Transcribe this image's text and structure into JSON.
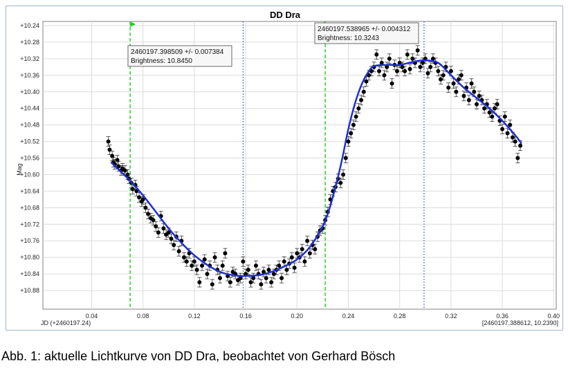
{
  "caption": "Abb. 1: aktuelle Lichtkurve von DD Dra, beobachtet von Gerhard Bösch",
  "colors": {
    "points": "#000000",
    "fit_curve": "#1f2fd0",
    "marker_lines": "#2ecc2e",
    "cursor_lines": "#3a4fd6",
    "grid": "#dcdcdc"
  },
  "chart_data": {
    "type": "scatter",
    "title": "DD Dra",
    "ylabel": "Mag",
    "xlabel": "JD (+2460197.24)",
    "corner_readout": "[2460197.388612, 10.2390]",
    "xlim": [
      0.002,
      0.402
    ],
    "ylim": [
      10.23,
      10.925
    ],
    "y_inverted": true,
    "x_ticks": [
      0.04,
      0.08,
      0.12,
      0.16,
      0.2,
      0.24,
      0.28,
      0.32,
      0.36,
      0.4
    ],
    "x_tick_labels": [
      "0.04",
      "0.08",
      "0.12",
      "0.16",
      "0.20",
      "0.24",
      "0.28",
      "0.32",
      "0.36",
      "0.40"
    ],
    "y_ticks": [
      10.24,
      10.28,
      10.32,
      10.36,
      10.4,
      10.44,
      10.48,
      10.52,
      10.56,
      10.6,
      10.64,
      10.68,
      10.72,
      10.76,
      10.8,
      10.84,
      10.88
    ],
    "y_tick_labels": [
      "+10.24",
      "+10.28",
      "+10.32",
      "+10.36",
      "+10.40",
      "+10.44",
      "+10.48",
      "+10.52",
      "+10.56",
      "+10.60",
      "+10.64",
      "+10.68",
      "+10.72",
      "+10.76",
      "+10.80",
      "+10.84",
      "+10.88"
    ],
    "grid": true,
    "legend": "none",
    "marker_lines_x": [
      0.07,
      0.222
    ],
    "cursor_lines_x": [
      0.158,
      0.299
    ],
    "tooltips": [
      {
        "line1": "2460197.398509 +/- 0.007384",
        "line2": "Brightness: 10.8450",
        "x": 0.158,
        "y": 10.845
      },
      {
        "line1": "2460197.538965 +/- 0.004312",
        "line2": "Brightness: 10.3243",
        "x": 0.299,
        "y": 10.3243
      }
    ],
    "fit_curve": {
      "name": "",
      "x": [
        0.055,
        0.07,
        0.08,
        0.09,
        0.1,
        0.11,
        0.12,
        0.13,
        0.14,
        0.15,
        0.158,
        0.17,
        0.18,
        0.19,
        0.2,
        0.21,
        0.22,
        0.225,
        0.23,
        0.235,
        0.24,
        0.245,
        0.25,
        0.255,
        0.26,
        0.27,
        0.28,
        0.29,
        0.299,
        0.31,
        0.32,
        0.33,
        0.34,
        0.35,
        0.36,
        0.37,
        0.375
      ],
      "y": [
        10.57,
        10.615,
        10.65,
        10.69,
        10.73,
        10.765,
        10.795,
        10.818,
        10.835,
        10.843,
        10.845,
        10.843,
        10.835,
        10.822,
        10.805,
        10.775,
        10.725,
        10.685,
        10.63,
        10.565,
        10.49,
        10.43,
        10.385,
        10.355,
        10.338,
        10.335,
        10.335,
        10.328,
        10.324,
        10.33,
        10.36,
        10.39,
        10.415,
        10.44,
        10.47,
        10.505,
        10.525
      ]
    },
    "series": [
      {
        "name": "",
        "x": [
          0.053,
          0.054,
          0.056,
          0.057,
          0.058,
          0.06,
          0.061,
          0.063,
          0.064,
          0.066,
          0.068,
          0.069,
          0.071,
          0.072,
          0.074,
          0.075,
          0.077,
          0.079,
          0.08,
          0.082,
          0.084,
          0.086,
          0.088,
          0.09,
          0.092,
          0.094,
          0.096,
          0.098,
          0.1,
          0.102,
          0.104,
          0.106,
          0.108,
          0.11,
          0.112,
          0.114,
          0.116,
          0.118,
          0.12,
          0.122,
          0.124,
          0.126,
          0.128,
          0.13,
          0.132,
          0.134,
          0.136,
          0.138,
          0.14,
          0.142,
          0.144,
          0.146,
          0.148,
          0.15,
          0.152,
          0.154,
          0.156,
          0.158,
          0.16,
          0.162,
          0.164,
          0.166,
          0.168,
          0.17,
          0.172,
          0.174,
          0.176,
          0.178,
          0.18,
          0.182,
          0.184,
          0.186,
          0.188,
          0.19,
          0.192,
          0.194,
          0.196,
          0.198,
          0.2,
          0.202,
          0.204,
          0.206,
          0.208,
          0.21,
          0.212,
          0.214,
          0.216,
          0.218,
          0.22,
          0.222,
          0.224,
          0.226,
          0.228,
          0.23,
          0.232,
          0.234,
          0.236,
          0.238,
          0.24,
          0.242,
          0.244,
          0.246,
          0.248,
          0.25,
          0.252,
          0.254,
          0.256,
          0.258,
          0.26,
          0.262,
          0.264,
          0.266,
          0.268,
          0.27,
          0.272,
          0.274,
          0.276,
          0.278,
          0.28,
          0.282,
          0.284,
          0.286,
          0.288,
          0.29,
          0.292,
          0.294,
          0.296,
          0.298,
          0.3,
          0.302,
          0.304,
          0.306,
          0.308,
          0.31,
          0.312,
          0.314,
          0.316,
          0.318,
          0.32,
          0.322,
          0.324,
          0.326,
          0.328,
          0.33,
          0.332,
          0.334,
          0.336,
          0.338,
          0.34,
          0.342,
          0.344,
          0.346,
          0.348,
          0.35,
          0.352,
          0.354,
          0.356,
          0.358,
          0.36,
          0.362,
          0.364,
          0.366,
          0.368,
          0.37,
          0.372,
          0.374
        ],
        "y": [
          10.52,
          10.54,
          10.555,
          10.57,
          10.575,
          10.565,
          10.58,
          10.59,
          10.585,
          10.59,
          10.6,
          10.61,
          10.62,
          10.635,
          10.625,
          10.64,
          10.655,
          10.665,
          10.66,
          10.68,
          10.695,
          10.705,
          10.71,
          10.725,
          10.74,
          10.7,
          10.73,
          10.745,
          10.74,
          10.755,
          10.77,
          10.75,
          10.785,
          10.76,
          10.8,
          10.81,
          10.79,
          10.82,
          10.81,
          10.83,
          10.86,
          10.82,
          10.805,
          10.84,
          10.82,
          10.865,
          10.8,
          10.83,
          10.85,
          10.82,
          10.79,
          10.845,
          10.86,
          10.835,
          10.84,
          10.855,
          10.85,
          10.81,
          10.84,
          10.83,
          10.86,
          10.85,
          10.82,
          10.84,
          10.865,
          10.835,
          10.85,
          10.83,
          10.86,
          10.84,
          10.83,
          10.82,
          10.85,
          10.81,
          10.83,
          10.815,
          10.8,
          10.825,
          10.79,
          10.8,
          10.78,
          10.81,
          10.76,
          10.79,
          10.77,
          10.78,
          10.75,
          10.735,
          10.73,
          10.71,
          10.69,
          10.66,
          10.64,
          10.63,
          10.61,
          10.62,
          10.6,
          10.56,
          10.52,
          10.5,
          10.48,
          10.46,
          10.44,
          10.42,
          10.4,
          10.375,
          10.36,
          10.35,
          10.34,
          10.31,
          10.35,
          10.33,
          10.36,
          10.34,
          10.32,
          10.38,
          10.335,
          10.35,
          10.33,
          10.34,
          10.35,
          10.31,
          10.345,
          10.32,
          10.33,
          10.3,
          10.34,
          10.33,
          10.32,
          10.355,
          10.34,
          10.32,
          10.33,
          10.35,
          10.37,
          10.36,
          10.34,
          10.39,
          10.35,
          10.38,
          10.4,
          10.37,
          10.36,
          10.41,
          10.39,
          10.42,
          10.38,
          10.4,
          10.43,
          10.41,
          10.42,
          10.44,
          10.43,
          10.45,
          10.46,
          10.44,
          10.43,
          10.47,
          10.49,
          10.46,
          10.5,
          10.48,
          10.51,
          10.52,
          10.56,
          10.53
        ]
      }
    ]
  }
}
